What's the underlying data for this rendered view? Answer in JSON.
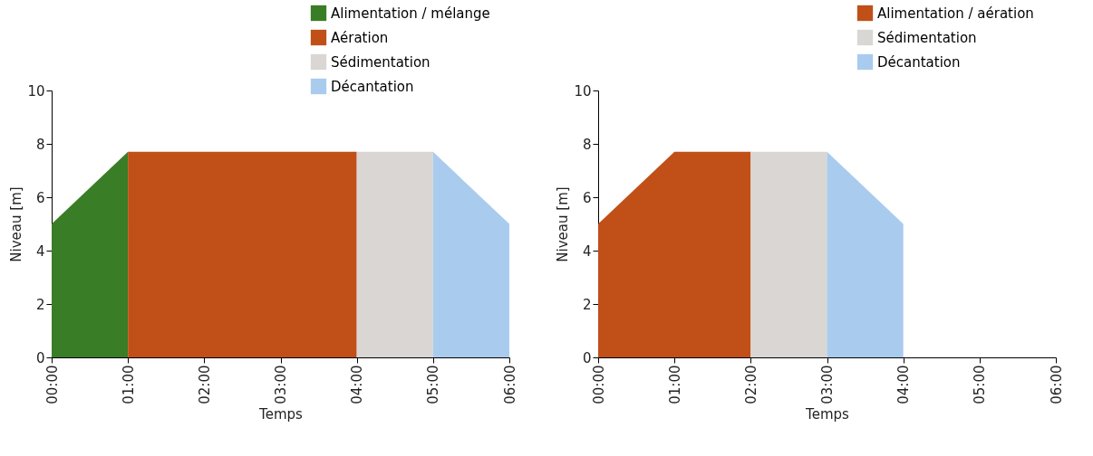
{
  "chart_data": [
    {
      "type": "area",
      "xlabel": "Temps",
      "ylabel": "Niveau [m]",
      "xlim": [
        0,
        6
      ],
      "xticks": [
        {
          "value": 0,
          "label": "00:00"
        },
        {
          "value": 1,
          "label": "01:00"
        },
        {
          "value": 2,
          "label": "02:00"
        },
        {
          "value": 3,
          "label": "03:00"
        },
        {
          "value": 4,
          "label": "04:00"
        },
        {
          "value": 5,
          "label": "05:00"
        },
        {
          "value": 6,
          "label": "06:00"
        }
      ],
      "ylim": [
        0,
        10
      ],
      "yticks": [
        0,
        2,
        4,
        6,
        8,
        10
      ],
      "grid": false,
      "legend": "top right",
      "series": [
        {
          "name": "Alimentation / mélange",
          "color": "#3a7d27",
          "x": [
            0,
            1
          ],
          "values": [
            5,
            7.7
          ]
        },
        {
          "name": "Aération",
          "color": "#c05017",
          "x": [
            1,
            4
          ],
          "values": [
            7.7,
            7.7
          ]
        },
        {
          "name": "Sédimentation",
          "color": "#d9d6d3",
          "x": [
            4,
            5
          ],
          "values": [
            7.7,
            7.7
          ]
        },
        {
          "name": "Décantation",
          "color": "#a9cbee",
          "x": [
            5,
            6
          ],
          "values": [
            7.7,
            5
          ]
        }
      ]
    },
    {
      "type": "area",
      "xlabel": "Temps",
      "ylabel": "Niveau [m]",
      "xlim": [
        0,
        6
      ],
      "xticks": [
        {
          "value": 0,
          "label": "00:00"
        },
        {
          "value": 1,
          "label": "01:00"
        },
        {
          "value": 2,
          "label": "02:00"
        },
        {
          "value": 3,
          "label": "03:00"
        },
        {
          "value": 4,
          "label": "04:00"
        },
        {
          "value": 5,
          "label": "05:00"
        },
        {
          "value": 6,
          "label": "06:00"
        }
      ],
      "ylim": [
        0,
        10
      ],
      "yticks": [
        0,
        2,
        4,
        6,
        8,
        10
      ],
      "grid": false,
      "legend": "top right",
      "series": [
        {
          "name": "Alimentation / aération",
          "color": "#c05017",
          "x": [
            0,
            1,
            2
          ],
          "values": [
            5,
            7.7,
            7.7
          ]
        },
        {
          "name": "Sédimentation",
          "color": "#d9d6d3",
          "x": [
            2,
            3
          ],
          "values": [
            7.7,
            7.7
          ]
        },
        {
          "name": "Décantation",
          "color": "#a9cbee",
          "x": [
            3,
            4
          ],
          "values": [
            7.7,
            5
          ]
        }
      ]
    }
  ]
}
